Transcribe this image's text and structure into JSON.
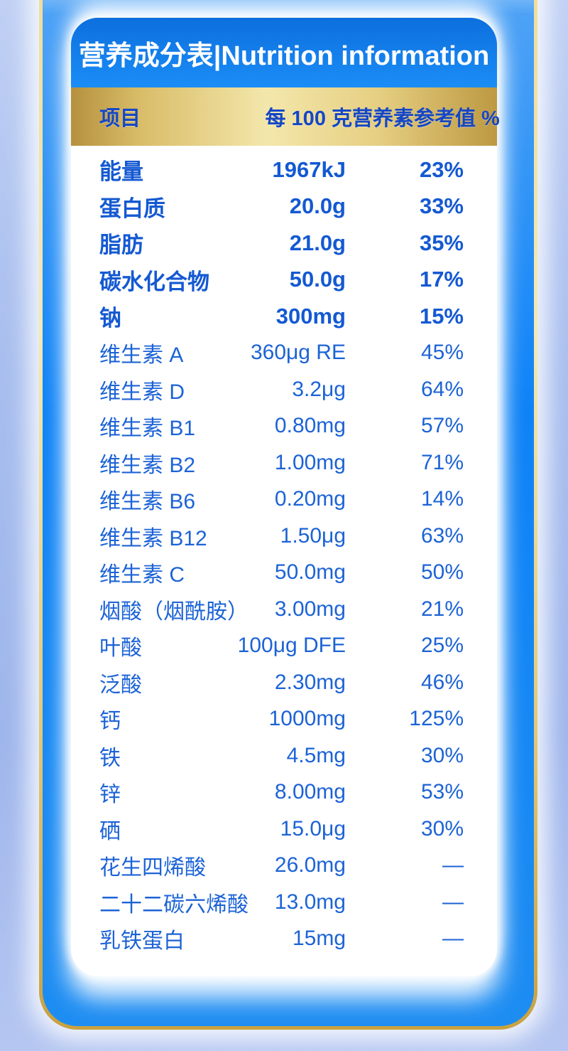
{
  "title": "营养成分表|Nutrition information",
  "columns": {
    "item": "项目",
    "per_100g": "每 100 克",
    "nrv": "营养素参考值 %"
  },
  "rows": [
    {
      "name": "能量",
      "value": "1967kJ",
      "nrv": "23%",
      "bold": true
    },
    {
      "name": "蛋白质",
      "value": "20.0g",
      "nrv": "33%",
      "bold": true
    },
    {
      "name": "脂肪",
      "value": "21.0g",
      "nrv": "35%",
      "bold": true
    },
    {
      "name": "碳水化合物",
      "value": "50.0g",
      "nrv": "17%",
      "bold": true
    },
    {
      "name": "钠",
      "value": "300mg",
      "nrv": "15%",
      "bold": true
    },
    {
      "name": "维生素 A",
      "value": "360μg RE",
      "nrv": "45%",
      "bold": false
    },
    {
      "name": "维生素 D",
      "value": "3.2μg",
      "nrv": "64%",
      "bold": false
    },
    {
      "name": "维生素 B1",
      "value": "0.80mg",
      "nrv": "57%",
      "bold": false
    },
    {
      "name": "维生素 B2",
      "value": "1.00mg",
      "nrv": "71%",
      "bold": false
    },
    {
      "name": "维生素 B6",
      "value": "0.20mg",
      "nrv": "14%",
      "bold": false
    },
    {
      "name": "维生素 B12",
      "value": "1.50μg",
      "nrv": "63%",
      "bold": false
    },
    {
      "name": "维生素 C",
      "value": "50.0mg",
      "nrv": "50%",
      "bold": false
    },
    {
      "name": "烟酸（烟酰胺）",
      "value": "3.00mg",
      "nrv": "21%",
      "bold": false
    },
    {
      "name": "叶酸",
      "value": "100μg DFE",
      "nrv": "25%",
      "bold": false
    },
    {
      "name": "泛酸",
      "value": "2.30mg",
      "nrv": "46%",
      "bold": false
    },
    {
      "name": "钙",
      "value": "1000mg",
      "nrv": "125%",
      "bold": false
    },
    {
      "name": "铁",
      "value": "4.5mg",
      "nrv": "30%",
      "bold": false
    },
    {
      "name": "锌",
      "value": "8.00mg",
      "nrv": "53%",
      "bold": false
    },
    {
      "name": "硒",
      "value": "15.0μg",
      "nrv": "30%",
      "bold": false
    },
    {
      "name": "花生四烯酸",
      "value": "26.0mg",
      "nrv": "—",
      "bold": false
    },
    {
      "name": "二十二碳六烯酸",
      "value": "13.0mg",
      "nrv": "—",
      "bold": false
    },
    {
      "name": "乳铁蛋白",
      "value": "15mg",
      "nrv": "—",
      "bold": false
    }
  ],
  "colors": {
    "header_blue": "#1b8df7",
    "body_text_blue": "#1c63d6",
    "bold_text_blue": "#1459d2",
    "gold_light": "#f3e7ab",
    "gold_dark": "#c9a23f",
    "panel_blue": "#0e83f7",
    "page_periwinkle": "#a8beee",
    "header_label_blue": "#1547c5"
  }
}
